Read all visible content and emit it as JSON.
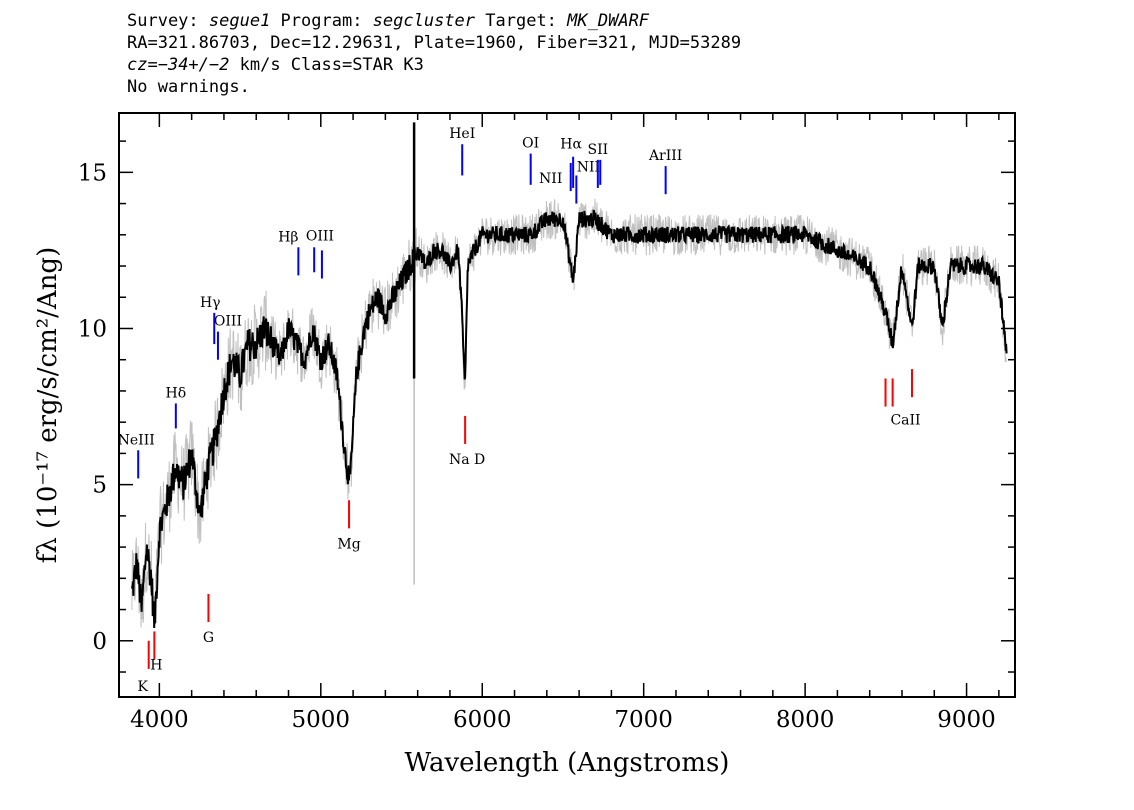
{
  "header": {
    "line1": {
      "label_survey": "Survey: ",
      "survey": "segue1",
      "label_program": " Program: ",
      "program": "segcluster",
      "label_target": " Target: ",
      "target": "MK_DWARF"
    },
    "line2": "RA=321.86703, Dec=12.29631, Plate=1960, Fiber=321, MJD=53289",
    "line3": {
      "cz_label": "cz=",
      "cz_value": "−34+/−2",
      "rest": " km/s Class=STAR K3"
    },
    "line4": "No warnings."
  },
  "chart_data": {
    "type": "line",
    "xlabel": "Wavelength (Angstroms)",
    "ylabel": "fλ (10⁻¹⁷ erg/s/cm²/Ang)",
    "xlim": [
      3750,
      9300
    ],
    "ylim": [
      -1.8,
      16.9
    ],
    "xticks": [
      4000,
      5000,
      6000,
      7000,
      8000,
      9000
    ],
    "yticks": [
      0,
      5,
      10,
      15
    ],
    "colors": {
      "flux": "#000000",
      "error": "#c0c0c0",
      "emission": "#0000ff",
      "absorption": "#ff0000"
    },
    "series": [
      {
        "x": [
          3830,
          3860,
          3890,
          3920,
          3950,
          3970,
          4000,
          4050,
          4100,
          4150,
          4200,
          4250,
          4300,
          4350,
          4400,
          4450,
          4500,
          4550,
          4600,
          4650,
          4700,
          4750,
          4800,
          4850,
          4900,
          4950,
          5000,
          5050,
          5100,
          5150,
          5180,
          5220,
          5270,
          5300,
          5350,
          5400,
          5450,
          5500,
          5550,
          5600,
          5650,
          5700,
          5750,
          5800,
          5850,
          5870,
          5893,
          5910,
          5950,
          6000,
          6050,
          6100,
          6200,
          6300,
          6400,
          6500,
          6563,
          6600,
          6700,
          6800,
          6900,
          7000,
          7200,
          7400,
          7600,
          7800,
          8000,
          8200,
          8400,
          8498,
          8542,
          8600,
          8662,
          8700,
          8800,
          8850,
          8900,
          9000,
          9100,
          9200,
          9250
        ],
        "y": [
          1.5,
          2.5,
          1.0,
          3.0,
          2.0,
          0.5,
          3.5,
          4.5,
          5.5,
          5.0,
          6.0,
          4.0,
          5.5,
          6.5,
          8.0,
          9.0,
          8.5,
          9.5,
          9.5,
          10.0,
          9.5,
          9.0,
          10.0,
          9.5,
          9.0,
          10.0,
          9.0,
          9.5,
          8.5,
          6.0,
          5.0,
          8.5,
          10.0,
          10.5,
          11.0,
          10.5,
          11.0,
          11.5,
          12.0,
          12.5,
          12.0,
          12.5,
          12.5,
          12.0,
          12.5,
          11.0,
          8.0,
          12.0,
          12.5,
          13.0,
          13.0,
          13.0,
          13.0,
          13.0,
          13.5,
          13.5,
          11.5,
          13.5,
          13.5,
          13.0,
          13.0,
          13.0,
          13.0,
          13.0,
          13.0,
          13.0,
          13.0,
          12.5,
          12.0,
          10.5,
          9.5,
          12.0,
          10.0,
          12.0,
          12.0,
          10.0,
          12.0,
          12.0,
          12.0,
          11.5,
          9.0
        ]
      }
    ],
    "emission_lines": [
      {
        "label": "NeIII",
        "wave": 3869,
        "ymin": 5.2,
        "ymax": 6.1
      },
      {
        "label": "Hδ",
        "wave": 4102,
        "ymin": 6.8,
        "ymax": 7.6
      },
      {
        "label": "Hγ",
        "wave": 4340,
        "ymin": 9.5,
        "ymax": 10.5
      },
      {
        "label": "OIII",
        "wave": 4363,
        "ymin": 9.0,
        "ymax": 9.9
      },
      {
        "label": "Hβ",
        "wave": 4861,
        "ymin": 11.7,
        "ymax": 12.6
      },
      {
        "label": "OIII",
        "wave": 4959,
        "ymin": 11.8,
        "ymax": 12.6
      },
      {
        "label": "OIII",
        "wave": 5007,
        "ymin": 11.6,
        "ymax": 12.5
      },
      {
        "label": "HeI",
        "wave": 5876,
        "ymin": 14.9,
        "ymax": 15.9
      },
      {
        "label": "OI",
        "wave": 6300,
        "ymin": 14.6,
        "ymax": 15.6
      },
      {
        "label": "NII",
        "wave": 6548,
        "ymin": 14.4,
        "ymax": 15.3
      },
      {
        "label": "Hα",
        "wave": 6563,
        "ymin": 14.5,
        "ymax": 15.5
      },
      {
        "label": "NII",
        "wave": 6583,
        "ymin": 14.0,
        "ymax": 14.9
      },
      {
        "label": "SII",
        "wave": 6716,
        "ymin": 14.5,
        "ymax": 15.4
      },
      {
        "label": "SII",
        "wave": 6731,
        "ymin": 14.6,
        "ymax": 15.4
      },
      {
        "label": "ArIII",
        "wave": 7136,
        "ymin": 14.3,
        "ymax": 15.2
      }
    ],
    "absorption_lines": [
      {
        "label": "K",
        "wave": 3934,
        "ymin": -0.9,
        "ymax": 0.0
      },
      {
        "label": "H",
        "wave": 3969,
        "ymin": -0.6,
        "ymax": 0.3
      },
      {
        "label": "G",
        "wave": 4304,
        "ymin": 0.6,
        "ymax": 1.5
      },
      {
        "label": "Mg",
        "wave": 5175,
        "ymin": 3.6,
        "ymax": 4.5
      },
      {
        "label": "Na D",
        "wave": 5894,
        "ymin": 6.3,
        "ymax": 7.2
      },
      {
        "label": "CaII",
        "wave": 8498,
        "ymin": 7.5,
        "ymax": 8.4
      },
      {
        "label": "CaII",
        "wave": 8542,
        "ymin": 7.5,
        "ymax": 8.4
      },
      {
        "label": "CaII",
        "wave": 8662,
        "ymin": 7.8,
        "ymax": 8.7
      }
    ]
  }
}
